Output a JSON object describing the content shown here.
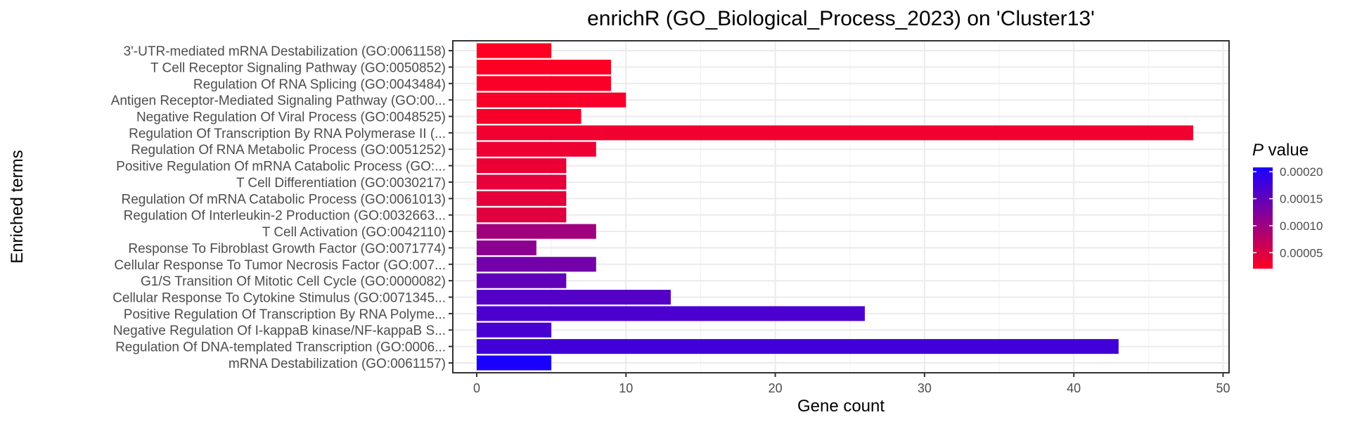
{
  "chart_data": {
    "type": "bar",
    "orientation": "horizontal",
    "title": "enrichR (GO_Biological_Process_2023) on 'Cluster13'",
    "xlabel": "Gene count",
    "ylabel": "Enriched terms",
    "xlim": [
      -1.6,
      50.4
    ],
    "xticks": [
      0,
      10,
      20,
      30,
      40,
      50
    ],
    "grid": true,
    "legend": {
      "title_italic": "P",
      "title_rest": " value",
      "position": "right",
      "type": "colorbar",
      "range": [
        2.04e-05,
        0.000208
      ],
      "ticks": [
        5e-05,
        0.0001,
        0.00015,
        0.0002
      ],
      "tick_labels": [
        "0.00005",
        "0.00010",
        "0.00015",
        "0.00020"
      ],
      "color_low": "#ff0022",
      "color_high": "#1a00ff"
    },
    "categories": [
      "3'-UTR-mediated mRNA Destabilization (GO:0061158)",
      "T Cell Receptor Signaling Pathway (GO:0050852)",
      "Regulation Of RNA Splicing (GO:0043484)",
      "Antigen Receptor-Mediated Signaling Pathway (GO:00...",
      "Negative Regulation Of Viral Process (GO:0048525)",
      "Regulation Of Transcription By RNA Polymerase II (...",
      "Regulation Of RNA Metabolic Process (GO:0051252)",
      "Positive Regulation Of mRNA Catabolic Process (GO:...",
      "T Cell Differentiation (GO:0030217)",
      "Regulation Of mRNA Catabolic Process (GO:0061013)",
      "Regulation Of Interleukin-2 Production (GO:0032663...",
      "T Cell Activation (GO:0042110)",
      "Response To Fibroblast Growth Factor (GO:0071774)",
      "Cellular Response To Tumor Necrosis Factor (GO:007...",
      "G1/S Transition Of Mitotic Cell Cycle (GO:0000082)",
      "Cellular Response To Cytokine Stimulus (GO:0071345...",
      "Positive Regulation Of Transcription By RNA Polyme...",
      "Negative Regulation Of I-kappaB kinase/NF-kappaB S...",
      "Regulation Of DNA-templated Transcription (GO:0006...",
      "mRNA Destabilization (GO:0061157)"
    ],
    "values": [
      5,
      9,
      9,
      10,
      7,
      48,
      8,
      6,
      6,
      6,
      6,
      8,
      4,
      8,
      6,
      13,
      26,
      5,
      43,
      5
    ],
    "p_values": [
      2.1e-05,
      2.2e-05,
      2.4e-05,
      2.6e-05,
      2.8e-05,
      3.2e-05,
      3.4e-05,
      3.7e-05,
      4e-05,
      4.2e-05,
      4.5e-05,
      9.8e-05,
      0.000115,
      0.000135,
      0.00015,
      0.00016,
      0.000168,
      0.00017,
      0.000175,
      0.000208
    ]
  }
}
